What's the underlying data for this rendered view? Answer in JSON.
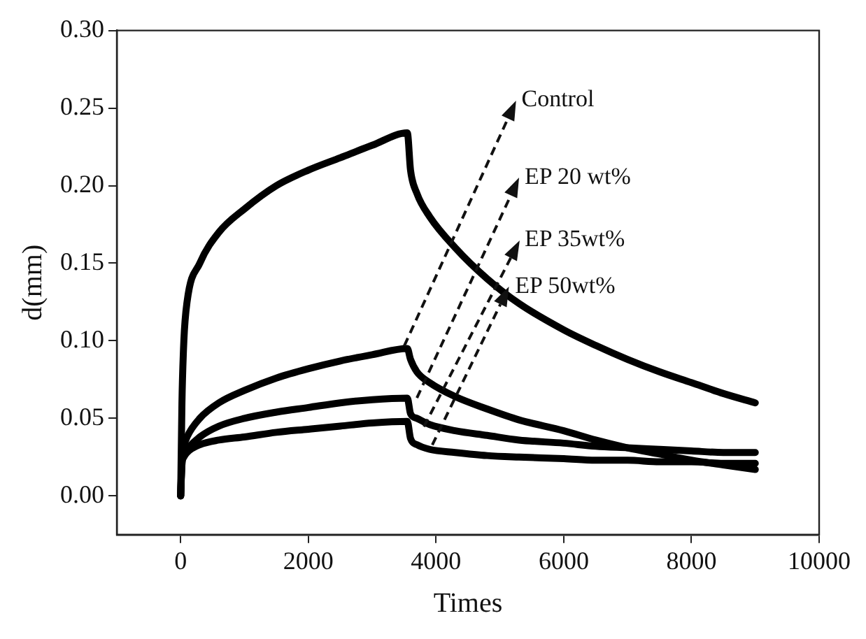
{
  "chart_data": {
    "type": "line",
    "xlabel": "Times",
    "ylabel": "d(mm)",
    "xlim": [
      -1000,
      10000
    ],
    "xticks": [
      0,
      2000,
      4000,
      6000,
      8000,
      10000
    ],
    "ylim": [
      -0.025,
      0.3
    ],
    "yticks": [
      {
        "value": 0,
        "label": "0.00"
      },
      {
        "value": 0.05,
        "label": "0.05"
      },
      {
        "value": 0.1,
        "label": "0.10"
      },
      {
        "value": 0.15,
        "label": "0.15"
      },
      {
        "value": 0.2,
        "label": "0.20"
      },
      {
        "value": 0.25,
        "label": "0.25"
      },
      {
        "value": 0.3,
        "label": "0.30"
      }
    ],
    "grid": false,
    "line_style": "solid",
    "x": [
      0,
      20,
      50,
      100,
      300,
      600,
      1000,
      1500,
      2000,
      2500,
      3000,
      3550,
      3600,
      3700,
      3900,
      4300,
      4800,
      5300,
      6000,
      6500,
      7000,
      7500,
      8000,
      8500,
      9000
    ],
    "series": [
      {
        "name": "Control",
        "color": "#000000",
        "values": [
          0,
          0.06,
          0.1,
          0.125,
          0.15,
          0.17,
          0.185,
          0.2,
          0.21,
          0.218,
          0.226,
          0.234,
          0.21,
          0.195,
          0.18,
          0.16,
          0.14,
          0.124,
          0.107,
          0.097,
          0.088,
          0.08,
          0.073,
          0.066,
          0.06
        ]
      },
      {
        "name": "EP 20 wt%",
        "color": "#000000",
        "values": [
          0,
          0.025,
          0.032,
          0.038,
          0.05,
          0.06,
          0.068,
          0.076,
          0.082,
          0.087,
          0.091,
          0.095,
          0.088,
          0.08,
          0.073,
          0.064,
          0.056,
          0.049,
          0.042,
          0.036,
          0.031,
          0.027,
          0.023,
          0.02,
          0.017
        ]
      },
      {
        "name": "EP 35wt%",
        "color": "#000000",
        "values": [
          0,
          0.022,
          0.027,
          0.03,
          0.038,
          0.045,
          0.05,
          0.054,
          0.057,
          0.06,
          0.062,
          0.063,
          0.053,
          0.05,
          0.046,
          0.042,
          0.039,
          0.036,
          0.034,
          0.032,
          0.031,
          0.03,
          0.029,
          0.028,
          0.028
        ]
      },
      {
        "name": "EP 50wt%",
        "color": "#000000",
        "values": [
          0,
          0.02,
          0.025,
          0.028,
          0.033,
          0.036,
          0.038,
          0.041,
          0.043,
          0.045,
          0.047,
          0.048,
          0.037,
          0.033,
          0.03,
          0.028,
          0.026,
          0.025,
          0.024,
          0.023,
          0.023,
          0.022,
          0.022,
          0.021,
          0.021
        ]
      }
    ]
  }
}
